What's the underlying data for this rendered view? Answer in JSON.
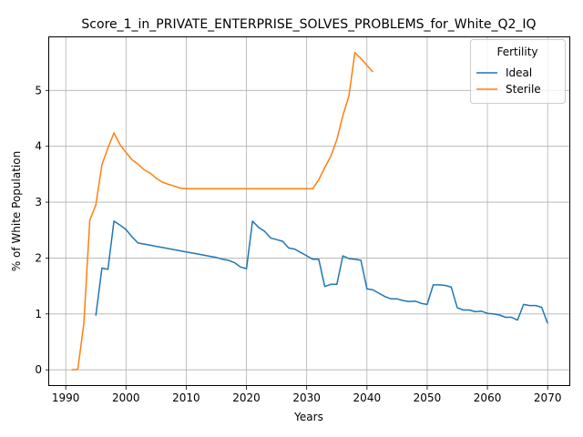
{
  "chart_data": {
    "type": "line",
    "title": "Score_1_in_PRIVATE_ENTERPRISE_SOLVES_PROBLEMS_for_White_Q2_IQ",
    "xlabel": "Years",
    "ylabel": "% of White Population",
    "xlim": [
      1987.25,
      2073.75
    ],
    "ylim": [
      -0.29,
      5.95
    ],
    "xticks": [
      1990,
      2000,
      2010,
      2020,
      2030,
      2040,
      2050,
      2060,
      2070
    ],
    "yticks": [
      0,
      1,
      2,
      3,
      4,
      5
    ],
    "grid": true,
    "legend": {
      "title": "Fertility",
      "placement": "top-right",
      "entries": [
        "Ideal",
        "Sterile"
      ]
    },
    "series": [
      {
        "name": "Ideal",
        "color": "#1f77b4",
        "x": [
          1995,
          1996,
          1997,
          1998,
          1999,
          2000,
          2001,
          2002,
          2003,
          2004,
          2005,
          2006,
          2007,
          2008,
          2009,
          2010,
          2011,
          2012,
          2013,
          2014,
          2015,
          2016,
          2017,
          2018,
          2019,
          2020,
          2021,
          2022,
          2023,
          2024,
          2025,
          2026,
          2027,
          2028,
          2029,
          2030,
          2031,
          2032,
          2033,
          2034,
          2035,
          2036,
          2037,
          2038,
          2039,
          2040,
          2041,
          2042,
          2043,
          2044,
          2045,
          2046,
          2047,
          2048,
          2049,
          2050,
          2051,
          2052,
          2053,
          2054,
          2055,
          2056,
          2057,
          2058,
          2059,
          2060,
          2061,
          2062,
          2063,
          2064,
          2065,
          2066,
          2067,
          2068,
          2069,
          2070
        ],
        "values": [
          0.97,
          1.82,
          1.8,
          2.66,
          2.59,
          2.51,
          2.38,
          2.27,
          2.25,
          2.23,
          2.21,
          2.19,
          2.17,
          2.15,
          2.13,
          2.11,
          2.09,
          2.07,
          2.05,
          2.03,
          2.01,
          1.98,
          1.96,
          1.92,
          1.84,
          1.81,
          2.66,
          2.55,
          2.48,
          2.36,
          2.33,
          2.3,
          2.18,
          2.16,
          2.1,
          2.04,
          1.98,
          1.98,
          1.49,
          1.53,
          1.53,
          2.04,
          1.99,
          1.98,
          1.96,
          1.45,
          1.43,
          1.37,
          1.31,
          1.27,
          1.27,
          1.24,
          1.22,
          1.23,
          1.19,
          1.17,
          1.52,
          1.52,
          1.51,
          1.48,
          1.11,
          1.07,
          1.07,
          1.04,
          1.05,
          1.01,
          1.0,
          0.98,
          0.94,
          0.94,
          0.89,
          1.17,
          1.15,
          1.15,
          1.12,
          0.83
        ]
      },
      {
        "name": "Sterile",
        "color": "#ff7f0e",
        "x": [
          1991,
          1992,
          1993,
          1994,
          1995,
          1996,
          1997,
          1998,
          1999,
          2000,
          2001,
          2002,
          2003,
          2004,
          2005,
          2006,
          2007,
          2008,
          2009,
          2010,
          2015,
          2020,
          2025,
          2030,
          2031,
          2032,
          2033,
          2034,
          2035,
          2036,
          2037,
          2038,
          2039,
          2040,
          2041
        ],
        "values": [
          0.0,
          0.01,
          0.82,
          2.68,
          2.95,
          3.67,
          3.97,
          4.24,
          4.03,
          3.89,
          3.76,
          3.68,
          3.58,
          3.52,
          3.43,
          3.36,
          3.32,
          3.29,
          3.25,
          3.24,
          3.24,
          3.24,
          3.24,
          3.24,
          3.24,
          3.4,
          3.62,
          3.82,
          4.12,
          4.55,
          4.9,
          5.68,
          5.57,
          5.45,
          5.33
        ]
      }
    ]
  }
}
